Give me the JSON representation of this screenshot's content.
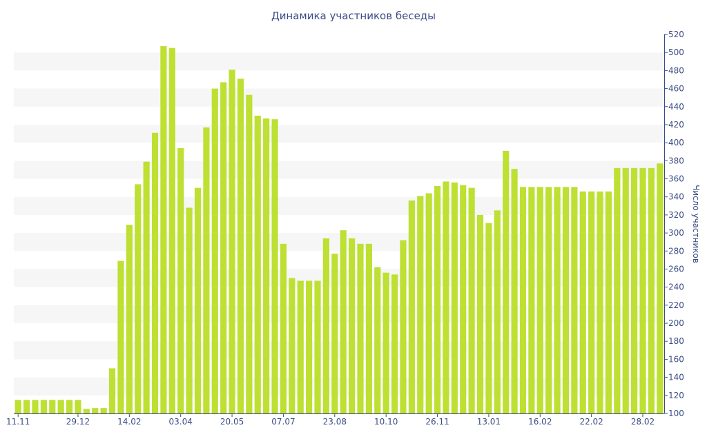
{
  "chart_data": {
    "type": "bar",
    "title": "Динамика участников беседы",
    "ylabel": "Число участников",
    "xlabel": "",
    "ylim": [
      100,
      520
    ],
    "ytick_step": 20,
    "grid": "alternating horizontal bands",
    "y_axis_side": "right",
    "colors": {
      "bar": "#bde033",
      "band": "#f6f6f6",
      "text": "#3a4c85",
      "axis": "#3a4c85"
    },
    "x_tick_labels": [
      {
        "index": 0,
        "label": "11.11"
      },
      {
        "index": 7,
        "label": "29.12"
      },
      {
        "index": 13,
        "label": "14.02"
      },
      {
        "index": 19,
        "label": "03.04"
      },
      {
        "index": 25,
        "label": "20.05"
      },
      {
        "index": 31,
        "label": "07.07"
      },
      {
        "index": 37,
        "label": "23.08"
      },
      {
        "index": 43,
        "label": "10.10"
      },
      {
        "index": 49,
        "label": "26.11"
      },
      {
        "index": 55,
        "label": "13.01"
      },
      {
        "index": 61,
        "label": "16.02"
      },
      {
        "index": 67,
        "label": "22.02"
      },
      {
        "index": 73,
        "label": "28.02"
      }
    ],
    "values": [
      115,
      115,
      115,
      115,
      115,
      115,
      115,
      115,
      105,
      106,
      106,
      150,
      269,
      309,
      354,
      379,
      411,
      507,
      505,
      394,
      328,
      350,
      417,
      460,
      467,
      481,
      471,
      453,
      430,
      427,
      426,
      288,
      250,
      247,
      247,
      247,
      294,
      277,
      303,
      294,
      288,
      288,
      262,
      256,
      254,
      292,
      336,
      341,
      344,
      352,
      357,
      356,
      353,
      350,
      320,
      311,
      325,
      391,
      371,
      351,
      351,
      351,
      351,
      351,
      351,
      351,
      346,
      346,
      346,
      346,
      372,
      372,
      372,
      372,
      372,
      377
    ]
  }
}
